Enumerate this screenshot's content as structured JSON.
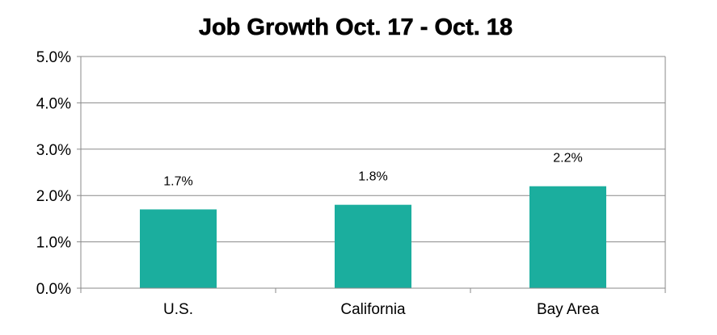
{
  "chart_data": {
    "type": "bar",
    "title": "Job Growth Oct. 17 - Oct. 18",
    "categories": [
      "U.S.",
      "California",
      "Bay Area"
    ],
    "values": [
      1.7,
      1.8,
      2.2
    ],
    "data_labels": [
      "1.7%",
      "1.8%",
      "2.2%"
    ],
    "ylim": [
      0,
      5
    ],
    "y_ticks": [
      0,
      1,
      2,
      3,
      4,
      5
    ],
    "y_tick_labels": [
      "0.0%",
      "1.0%",
      "2.0%",
      "3.0%",
      "4.0%",
      "5.0%"
    ],
    "xlabel": "",
    "ylabel": "",
    "grid": true,
    "legend": "none",
    "bar_color": "#1BAE9E",
    "grid_color": "#8A8A8A",
    "axis_color": "#8A8A8A"
  }
}
